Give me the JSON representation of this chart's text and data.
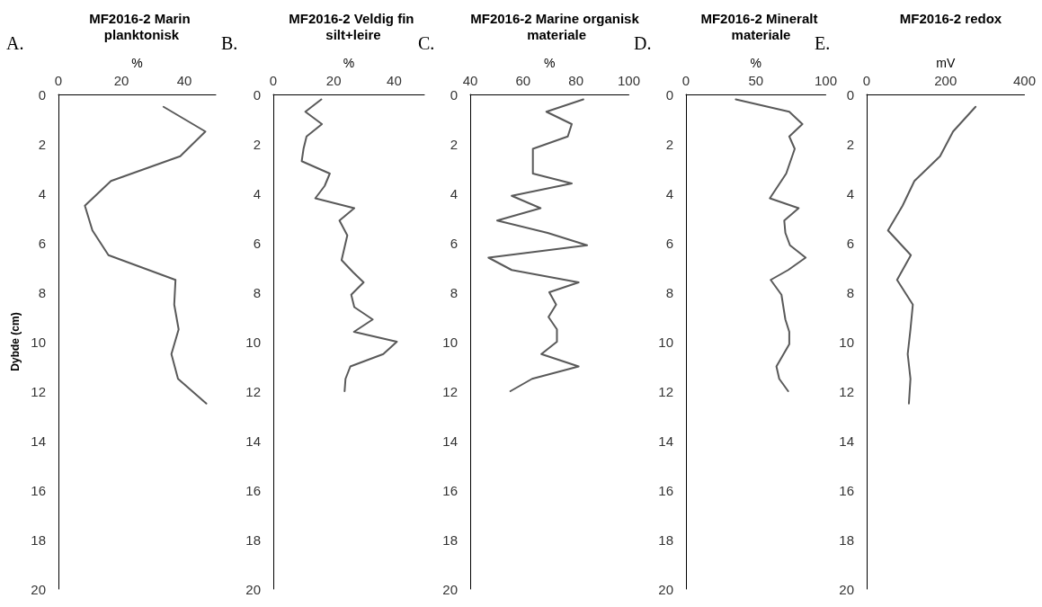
{
  "chart_data": [
    {
      "type": "line",
      "title": "MF2016-2 Marin planktonisk",
      "xlabel": "%",
      "ylabel": "Dybde (cm)",
      "annotations": [
        "A."
      ],
      "xlim": [
        0,
        50
      ],
      "xticks": [
        0,
        20,
        40
      ],
      "ylim": [
        20,
        0
      ],
      "yticks": [
        0,
        2,
        4,
        6,
        8,
        10,
        12,
        14,
        16,
        18,
        20
      ],
      "grid": false,
      "marker": "none",
      "line_style": "solid",
      "series": [
        {
          "color": "#595959",
          "x": [
            33.4,
            46.7,
            38.7,
            16.7,
            8.4,
            10.8,
            15.9,
            37.2,
            36.8,
            38.2,
            35.9,
            38,
            47
          ],
          "values": [
            0.5,
            1.5,
            2.5,
            3.5,
            4.5,
            5.5,
            6.5,
            7.5,
            8.5,
            9.5,
            10.5,
            11.5,
            12.5
          ]
        }
      ]
    },
    {
      "type": "line",
      "title": "MF2016-2 Veldig fin silt+leire",
      "xlabel": "%",
      "annotations": [
        "B."
      ],
      "xlim": [
        0,
        50
      ],
      "xticks": [
        0,
        20,
        40
      ],
      "ylim": [
        20,
        0
      ],
      "yticks": [
        0,
        2,
        4,
        6,
        8,
        10,
        12,
        14,
        16,
        18,
        20
      ],
      "grid": false,
      "marker": "none",
      "line_style": "solid",
      "series": [
        {
          "color": "#595959",
          "x": [
            15.9,
            10.6,
            16.1,
            11,
            10,
            9.4,
            18.7,
            17,
            13.9,
            26.8,
            21.9,
            24.5,
            22.6,
            26.5,
            29.9,
            25.8,
            26.8,
            32.9,
            26.7,
            40.9,
            36.4,
            25.5,
            23.9,
            23.6
          ],
          "values": [
            0.2,
            0.7,
            1.2,
            1.7,
            2.2,
            2.7,
            3.2,
            3.7,
            4.2,
            4.6,
            5.1,
            5.7,
            6.7,
            7.2,
            7.6,
            8.1,
            8.6,
            9.1,
            9.6,
            10,
            10.5,
            11,
            11.5,
            12
          ]
        }
      ]
    },
    {
      "type": "line",
      "title": "MF2016-2 Marine organisk materiale",
      "xlabel": "%",
      "annotations": [
        "C."
      ],
      "xlim": [
        40,
        100
      ],
      "xticks": [
        40,
        60,
        80,
        100
      ],
      "ylim": [
        20,
        0
      ],
      "yticks": [
        0,
        2,
        4,
        6,
        8,
        10,
        12,
        14,
        16,
        18,
        20
      ],
      "grid": false,
      "marker": "none",
      "line_style": "solid",
      "series": [
        {
          "color": "#595959",
          "x": [
            82.8,
            68.8,
            78.4,
            76.9,
            63.7,
            63.7,
            78.4,
            55.7,
            66.6,
            50.2,
            69.3,
            84.2,
            46.9,
            55.7,
            81,
            69.9,
            72.5,
            69.6,
            72.8,
            72.8,
            66.9,
            81,
            63.4,
            55.2
          ],
          "values": [
            0.2,
            0.7,
            1.2,
            1.7,
            2.2,
            3.2,
            3.6,
            4.1,
            4.6,
            5.1,
            5.6,
            6.1,
            6.6,
            7.1,
            7.6,
            8,
            8.5,
            9,
            9.5,
            10,
            10.5,
            11,
            11.5,
            12
          ]
        }
      ]
    },
    {
      "type": "line",
      "title": "MF2016-2 Mineralt materiale",
      "xlabel": "%",
      "annotations": [
        "D."
      ],
      "xlim": [
        0,
        100
      ],
      "xticks": [
        0,
        50,
        100
      ],
      "ylim": [
        20,
        0
      ],
      "yticks": [
        0,
        2,
        4,
        6,
        8,
        10,
        12,
        14,
        16,
        18,
        20
      ],
      "grid": false,
      "marker": "none",
      "line_style": "solid",
      "series": [
        {
          "color": "#595959",
          "x": [
            35.6,
            73.9,
            83.3,
            73.9,
            77.8,
            71.7,
            60,
            80.6,
            70.3,
            71.1,
            74.4,
            85.6,
            73.1,
            60.6,
            68.3,
            71.1,
            73.9,
            73.9,
            64.7,
            66.7,
            73.1
          ],
          "values": [
            0.2,
            0.7,
            1.2,
            1.7,
            2.2,
            3.2,
            4.2,
            4.6,
            5.1,
            5.6,
            6.1,
            6.6,
            7.1,
            7.5,
            8.1,
            9.1,
            9.6,
            10.1,
            11,
            11.5,
            12
          ]
        }
      ]
    },
    {
      "type": "line",
      "title": "MF2016-2 redox",
      "xlabel": "mV",
      "annotations": [
        "E."
      ],
      "xlim": [
        0,
        400
      ],
      "xticks": [
        0,
        200,
        400
      ],
      "ylim": [
        20,
        0
      ],
      "yticks": [
        0,
        2,
        4,
        6,
        8,
        10,
        12,
        14,
        16,
        18,
        20
      ],
      "grid": false,
      "marker": "none",
      "line_style": "solid",
      "series": [
        {
          "color": "#595959",
          "x": [
            276,
            219,
            186,
            121,
            91,
            54,
            112,
            77,
            117,
            111,
            104,
            111,
            107
          ],
          "values": [
            0.5,
            1.5,
            2.5,
            3.5,
            4.5,
            5.5,
            6.5,
            7.5,
            8.5,
            9.5,
            10.5,
            11.5,
            12.5
          ]
        }
      ]
    }
  ]
}
